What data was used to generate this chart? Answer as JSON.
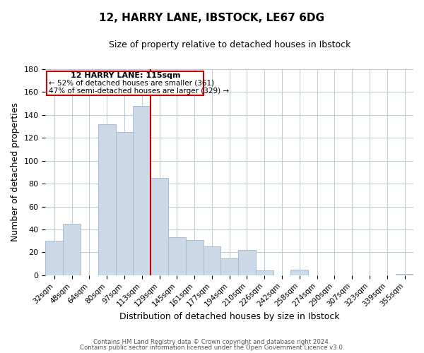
{
  "title": "12, HARRY LANE, IBSTOCK, LE67 6DG",
  "subtitle": "Size of property relative to detached houses in Ibstock",
  "xlabel": "Distribution of detached houses by size in Ibstock",
  "ylabel": "Number of detached properties",
  "bar_color": "#ccd9e8",
  "bar_edge_color": "#aabccc",
  "categories": [
    "32sqm",
    "48sqm",
    "64sqm",
    "80sqm",
    "97sqm",
    "113sqm",
    "129sqm",
    "145sqm",
    "161sqm",
    "177sqm",
    "194sqm",
    "210sqm",
    "226sqm",
    "242sqm",
    "258sqm",
    "274sqm",
    "290sqm",
    "307sqm",
    "323sqm",
    "339sqm",
    "355sqm"
  ],
  "values": [
    30,
    45,
    0,
    132,
    125,
    148,
    85,
    33,
    31,
    25,
    15,
    22,
    4,
    0,
    5,
    0,
    0,
    0,
    0,
    0,
    1
  ],
  "vline_index": 6,
  "vline_color": "#cc0000",
  "ylim": [
    0,
    180
  ],
  "yticks": [
    0,
    20,
    40,
    60,
    80,
    100,
    120,
    140,
    160,
    180
  ],
  "annotation_title": "12 HARRY LANE: 115sqm",
  "annotation_line1": "← 52% of detached houses are smaller (361)",
  "annotation_line2": "47% of semi-detached houses are larger (329) →",
  "footer1": "Contains HM Land Registry data © Crown copyright and database right 2024.",
  "footer2": "Contains public sector information licensed under the Open Government Licence v3.0.",
  "background_color": "#ffffff",
  "grid_color": "#c0ccd8"
}
